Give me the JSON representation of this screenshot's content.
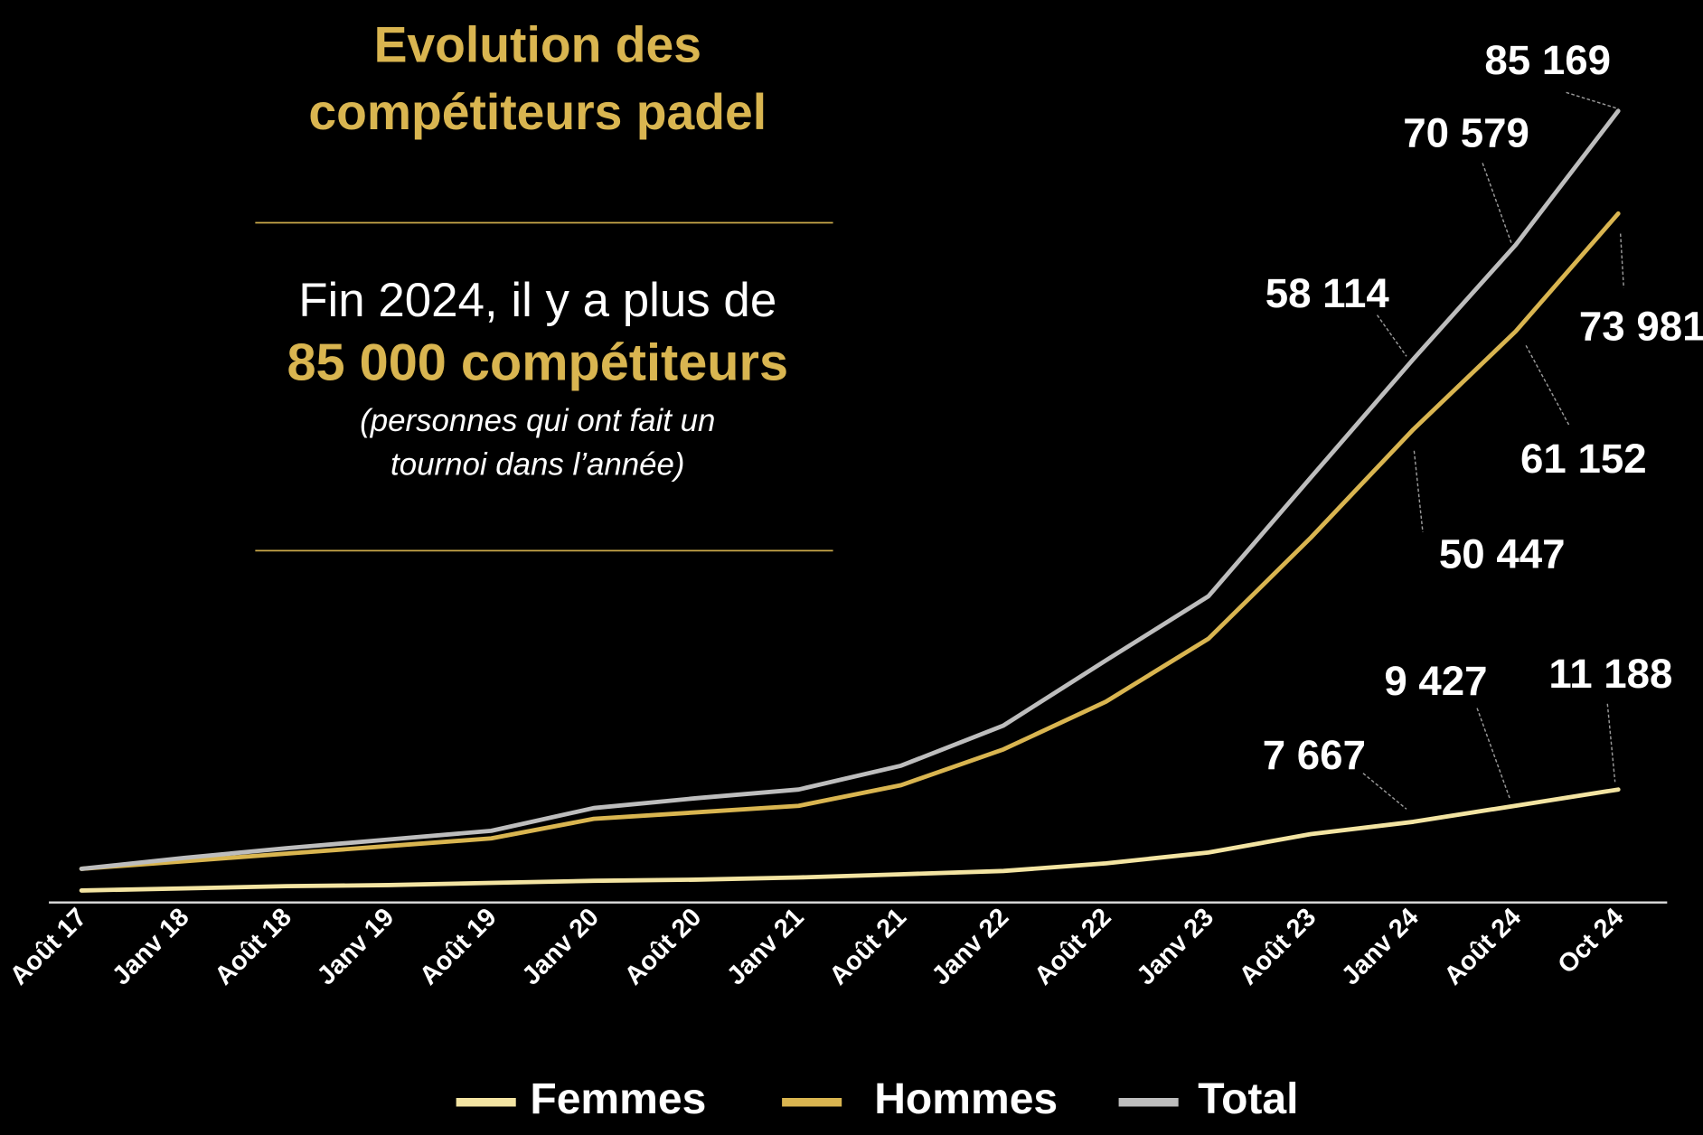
{
  "chart_data": {
    "type": "line",
    "title": "Evolution des compétiteurs padel",
    "annotation": {
      "text": "Fin 2024, il y a plus de",
      "highlight": "85 000 compétiteurs",
      "note": "(personnes qui ont fait un tournoi dans l’année)"
    },
    "categories": [
      "Août 17",
      "Janv 18",
      "Août 18",
      "Janv 19",
      "Août 19",
      "Janv 20",
      "Août 20",
      "Janv 21",
      "Août 21",
      "Janv 22",
      "Août 22",
      "Janv 23",
      "Août 23",
      "Janv 24",
      "Août 24",
      "Oct 24"
    ],
    "ylim": [
      0,
      90000
    ],
    "series": [
      {
        "name": "Femmes",
        "color": "#f3e4a2",
        "values": [
          180,
          410,
          650,
          770,
          1010,
          1240,
          1360,
          1600,
          1950,
          2310,
          3140,
          4320,
          6330,
          7667,
          9427,
          11188
        ],
        "value_labels": [
          null,
          null,
          null,
          null,
          null,
          null,
          null,
          null,
          null,
          null,
          null,
          null,
          null,
          "7 667",
          "9 427",
          "11 188"
        ]
      },
      {
        "name": "Hommes",
        "color": "#d9b550",
        "values": [
          2545,
          3370,
          4200,
          5030,
          5860,
          7990,
          8700,
          9410,
          11660,
          15570,
          20770,
          27630,
          38650,
          50447,
          61152,
          73981
        ],
        "value_labels": [
          null,
          null,
          null,
          null,
          null,
          null,
          null,
          null,
          null,
          null,
          null,
          null,
          null,
          "50 447",
          "61 152",
          "73 981"
        ]
      },
      {
        "name": "Total",
        "color": "#bdbdbd",
        "values": [
          2545,
          3730,
          4790,
          5740,
          6690,
          9170,
          10240,
          11190,
          13790,
          18170,
          25270,
          32260,
          45210,
          58114,
          70579,
          85169
        ],
        "value_labels": [
          null,
          null,
          null,
          null,
          null,
          null,
          null,
          null,
          null,
          null,
          null,
          null,
          null,
          "58 114",
          "70 579",
          "85 169"
        ]
      }
    ],
    "legend": "bottom"
  }
}
